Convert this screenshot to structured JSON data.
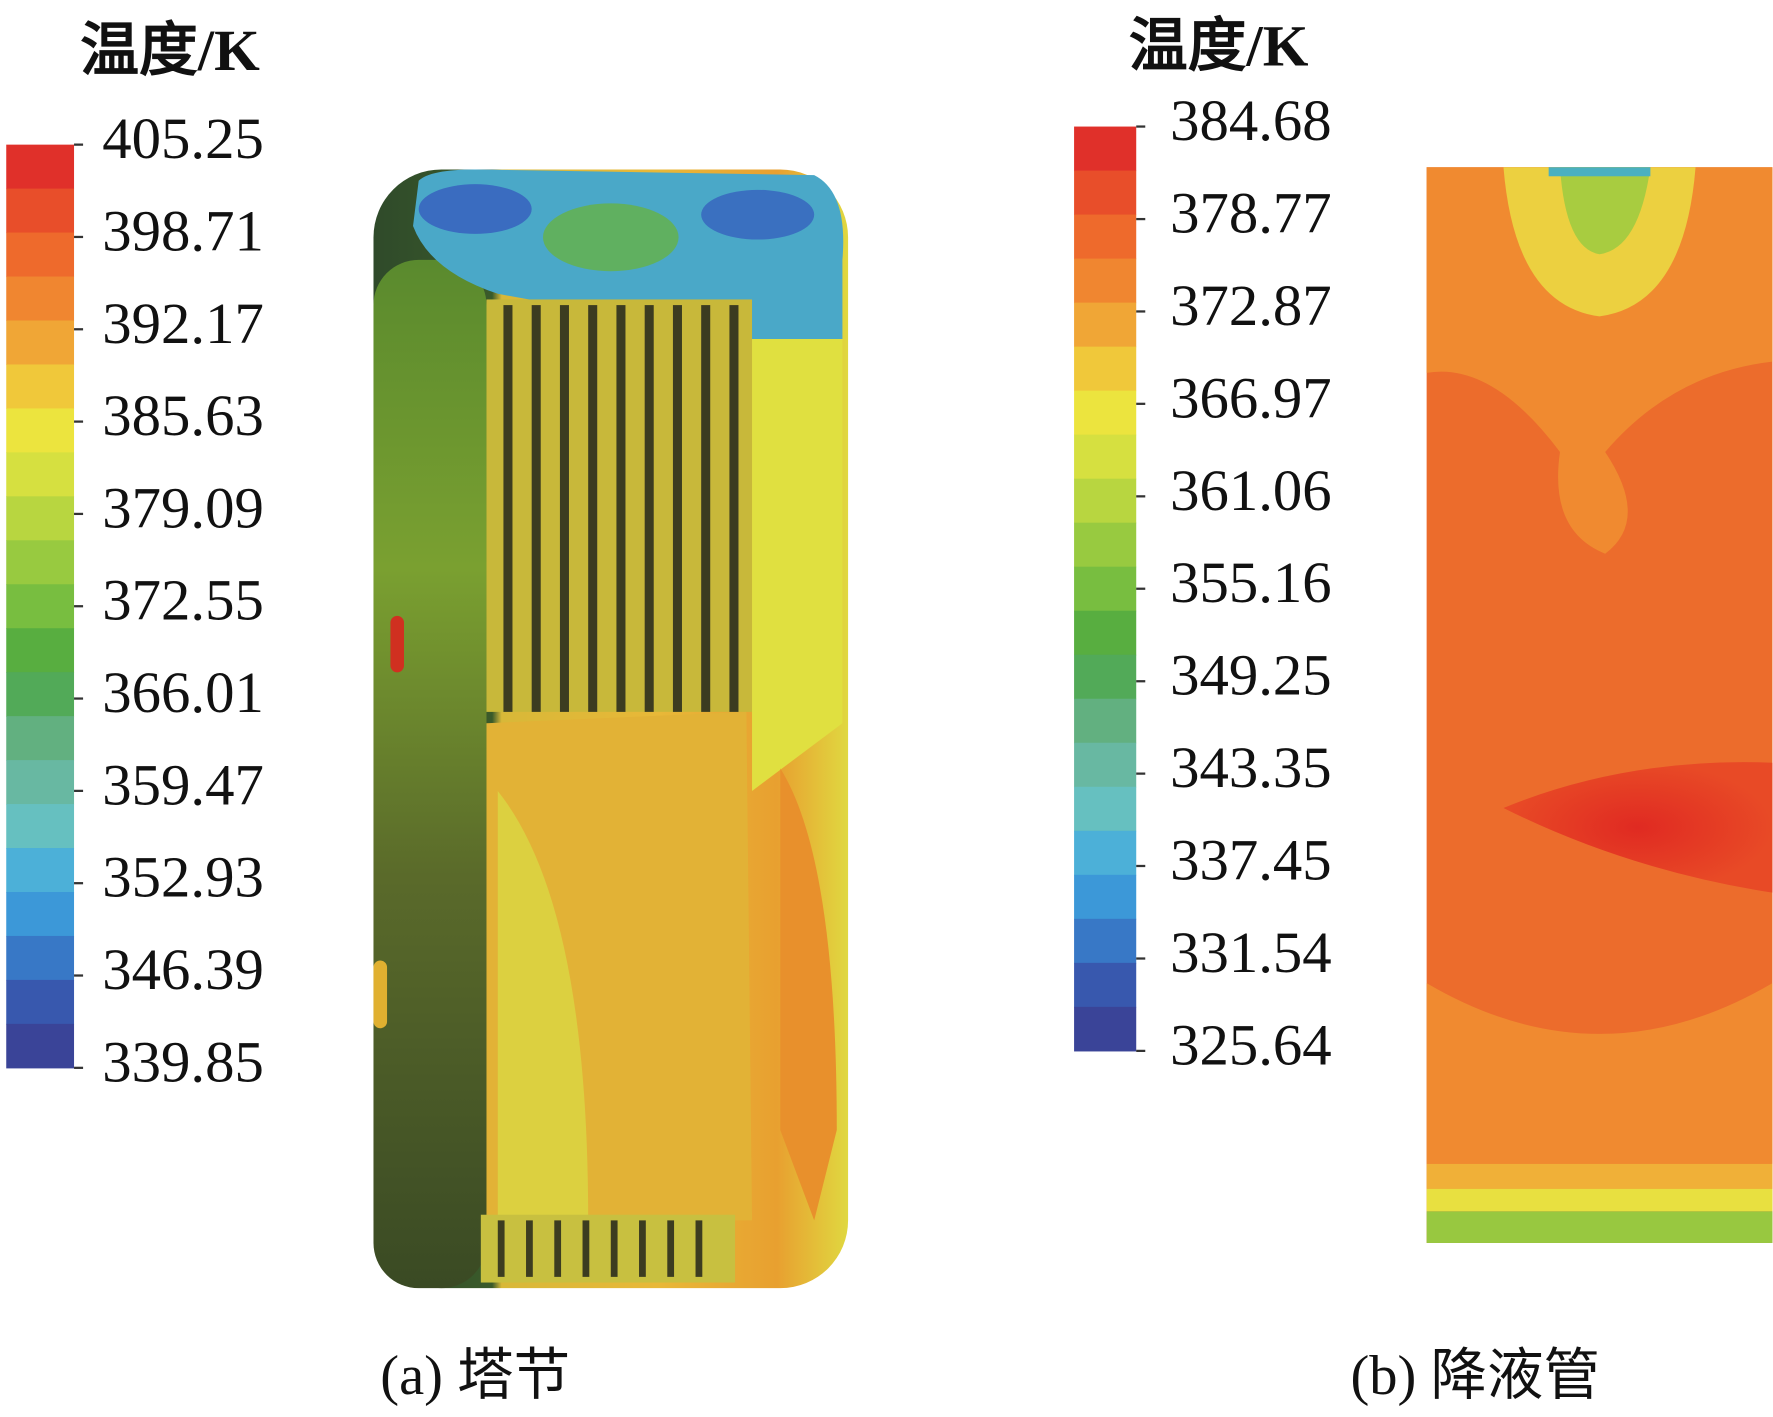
{
  "panels": [
    {
      "colorbar_title": "温度/K",
      "ticks": [
        405.25,
        398.71,
        392.17,
        385.63,
        379.09,
        372.55,
        366.01,
        359.47,
        352.93,
        346.39,
        339.85
      ],
      "caption": "(a) 塔节"
    },
    {
      "colorbar_title": "温度/K",
      "ticks": [
        384.68,
        378.77,
        372.87,
        366.97,
        361.06,
        355.16,
        349.25,
        343.35,
        337.45,
        331.54,
        325.64
      ],
      "caption": "(b) 降液管"
    }
  ]
}
